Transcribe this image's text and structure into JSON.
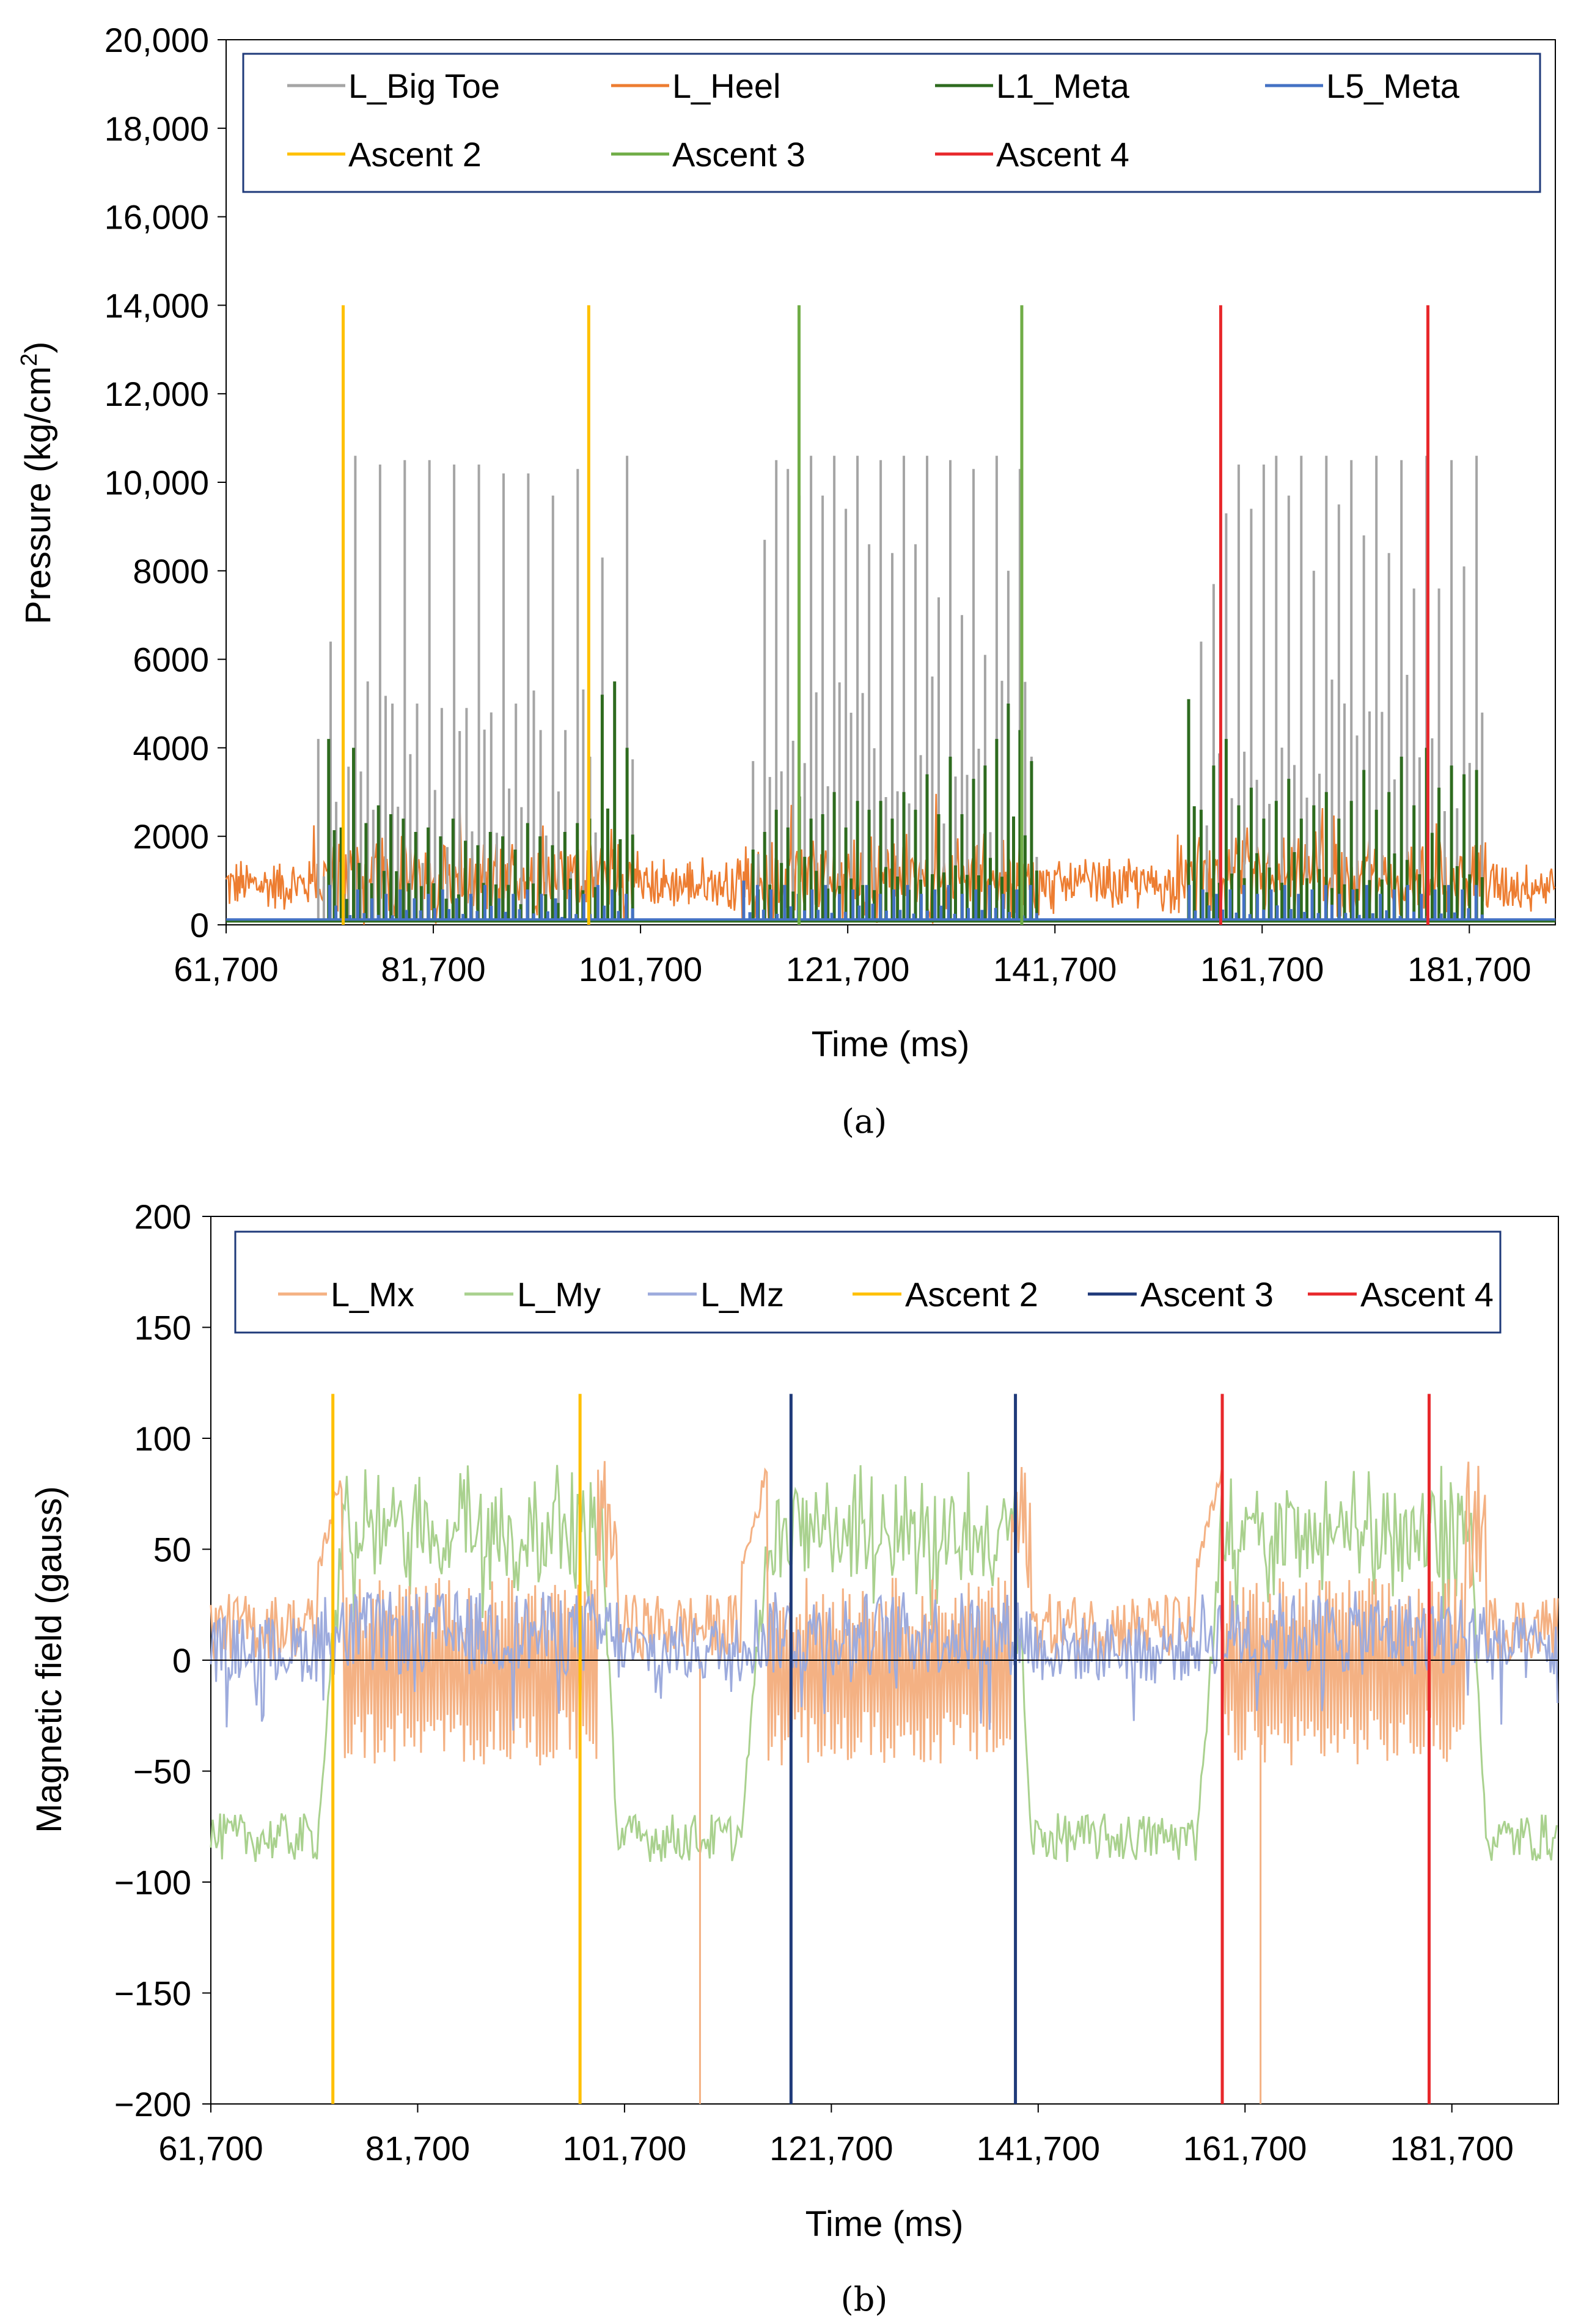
{
  "chart_data": [
    {
      "type": "line",
      "caption": "(a)",
      "xlabel": "Time (ms)",
      "ylabel": "Pressure (kg/cm²)",
      "ylabel_main": "Pressure (kg/cm",
      "ylabel_sup": "2",
      "ylabel_end": ")",
      "xlim": [
        61700,
        190000
      ],
      "ylim": [
        0,
        20000
      ],
      "xticks": [
        61700,
        81700,
        101700,
        121700,
        141700,
        161700,
        181700
      ],
      "xtick_labels": [
        "61,700",
        "81,700",
        "101,700",
        "121,700",
        "141,700",
        "161,700",
        "181,700"
      ],
      "yticks": [
        0,
        2000,
        4000,
        6000,
        8000,
        10000,
        12000,
        14000,
        16000,
        18000,
        20000
      ],
      "ytick_labels": [
        "0",
        "2000",
        "4000",
        "6000",
        "8000",
        "10,000",
        "12,000",
        "14,000",
        "16,000",
        "18,000",
        "20,000"
      ],
      "legend": "top",
      "series": [
        {
          "name": "L_Big Toe",
          "color": "#a5a5a5",
          "kind": "spikes",
          "baseline": 100,
          "bursts": [
            {
              "start": 70000,
              "end": 101000,
              "peaks": [
                4200,
                6400,
                10300,
                10600,
                5500,
                10400,
                5000,
                10500,
                5000,
                10500,
                4900,
                10400,
                4900,
                10400,
                4800,
                10200,
                5000,
                10200,
                4400,
                9700,
                4400,
                10300,
                3800,
                8300,
                3600,
                10600
              ]
            },
            {
              "start": 112000,
              "end": 140000,
              "peaks": [
                3700,
                8700,
                10500,
                10300,
                9700,
                10600,
                9700,
                10600,
                9400,
                10600,
                8600,
                10500,
                8400,
                10600,
                8600,
                10600,
                7400,
                10500,
                7000,
                10300,
                6100,
                10600,
                8000,
                10300,
                3800
              ]
            },
            {
              "start": 154000,
              "end": 183000,
              "peaks": [
                3800,
                6400,
                7700,
                9300,
                10400,
                9400,
                10400,
                10600,
                9700,
                10600,
                8000,
                10600,
                9500,
                10500,
                8800,
                10600,
                8400,
                10500,
                7600,
                10600,
                7600,
                10500,
                8100,
                10600
              ]
            }
          ]
        },
        {
          "name": "L_Heel",
          "color": "#ed7d31",
          "kind": "noise",
          "mean_rest": 900,
          "amp_rest": 700,
          "mean_active": 1000,
          "amp_active": 1100
        },
        {
          "name": "L1_Meta",
          "color": "#2e6b1f",
          "kind": "spikes",
          "baseline": 80,
          "bursts": [
            {
              "start": 71000,
              "end": 101000,
              "peaks": [
                4200,
                2200,
                4000,
                2300,
                2700,
                2500,
                2400,
                2100,
                2200,
                2000,
                2400,
                1900,
                1800,
                2100,
                2000,
                1700,
                2300,
                2000,
                1800,
                2100,
                2300,
                2400,
                5200,
                5500,
                4000
              ]
            },
            {
              "start": 112000,
              "end": 140000,
              "peaks": [
                1700,
                2100,
                2600,
                2200,
                2900,
                2400,
                2500,
                3000,
                2200,
                2800,
                2600,
                2800,
                2400,
                3000,
                2600,
                3400,
                2500,
                3800,
                2500,
                3300,
                3600,
                4200,
                5000,
                4400,
                3700
              ]
            },
            {
              "start": 154000,
              "end": 183000,
              "peaks": [
                5100,
                2600,
                3600,
                4200,
                2700,
                3100,
                2400,
                2800,
                3300,
                2400,
                2700,
                3000,
                2400,
                2800,
                3500,
                2600,
                3000,
                3800,
                2700,
                4000,
                3100,
                3600,
                3400,
                3500
              ]
            }
          ]
        },
        {
          "name": "L5_Meta",
          "color": "#4472c4",
          "kind": "spikes",
          "baseline": 120,
          "bursts": [
            {
              "start": 71000,
              "end": 101000,
              "peaks": [
                900,
                700,
                800,
                600,
                700,
                800,
                600,
                700,
                800,
                600,
                700,
                900,
                600,
                700,
                800,
                700,
                600,
                800,
                700,
                900,
                800,
                700
              ]
            },
            {
              "start": 111000,
              "end": 140000,
              "peaks": [
                1000,
                900,
                800,
                900,
                700,
                800,
                900,
                700,
                800,
                900,
                700,
                800,
                900,
                700,
                800,
                900,
                700,
                800,
                900,
                700,
                800,
                900
              ]
            },
            {
              "start": 154000,
              "end": 183000,
              "peaks": [
                900,
                800,
                700,
                800,
                900,
                700,
                800,
                900,
                700,
                800,
                900,
                700,
                800,
                900,
                700,
                800,
                900,
                700,
                800,
                900,
                800,
                900
              ]
            }
          ]
        },
        {
          "name": "Ascent 2",
          "color": "#ffc000",
          "kind": "vline",
          "x": [
            73000,
            96700
          ],
          "y": [
            0,
            14000
          ]
        },
        {
          "name": "Ascent 3",
          "color": "#70ad47",
          "kind": "vline",
          "x": [
            117000,
            138500
          ],
          "y": [
            0,
            14000
          ]
        },
        {
          "name": "Ascent 4",
          "color": "#e8282b",
          "kind": "vline",
          "x": [
            157700,
            177700
          ],
          "y": [
            0,
            14000
          ]
        }
      ]
    },
    {
      "type": "line",
      "caption": "(b)",
      "xlabel": "Time (ms)",
      "ylabel": "Magnetic field (gauss)",
      "xlim": [
        61700,
        192000
      ],
      "ylim": [
        -200,
        200
      ],
      "xticks": [
        61700,
        81700,
        101700,
        121700,
        141700,
        161700,
        181700
      ],
      "xtick_labels": [
        "61,700",
        "81,700",
        "101,700",
        "121,700",
        "141,700",
        "161,700",
        "181,700"
      ],
      "yticks": [
        -200,
        -150,
        -100,
        -50,
        0,
        50,
        100,
        150,
        200
      ],
      "ytick_labels": [
        "−200",
        "−150",
        "−100",
        "−50",
        "0",
        "50",
        "100",
        "150",
        "200"
      ],
      "legend": "top",
      "series": [
        {
          "name": "L_Mx",
          "color": "#f4b183",
          "kind": "mx"
        },
        {
          "name": "L_My",
          "color": "#a9d18e",
          "kind": "my"
        },
        {
          "name": "L_Mz",
          "color": "#9dabdd",
          "kind": "mz"
        },
        {
          "name": "Ascent 2",
          "color": "#ffc000",
          "kind": "vline",
          "x": [
            73500,
            97400
          ],
          "y": [
            -200,
            120
          ]
        },
        {
          "name": "Ascent 3",
          "color": "#1f3a7a",
          "kind": "vline",
          "x": [
            117800,
            139500
          ],
          "y": [
            -200,
            120
          ]
        },
        {
          "name": "Ascent 4",
          "color": "#e8282b",
          "kind": "vline",
          "x": [
            159500,
            179500
          ],
          "y": [
            -200,
            120
          ]
        }
      ],
      "mx_dips": [
        {
          "x": 109000,
          "y": -200
        },
        {
          "x": 163200,
          "y": -200
        }
      ],
      "active_segments": [
        [
          72000,
          101000
        ],
        [
          113000,
          141000
        ],
        [
          157000,
          185000
        ]
      ],
      "rest_segments": [
        [
          61700,
          72000
        ],
        [
          101000,
          113000
        ],
        [
          141000,
          157000
        ],
        [
          185000,
          192000
        ]
      ]
    }
  ]
}
